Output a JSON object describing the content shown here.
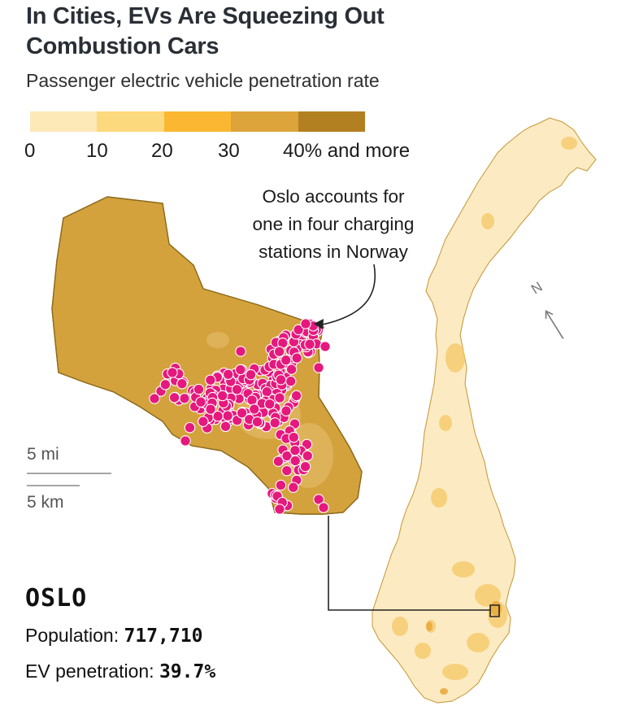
{
  "header": {
    "title": "In Cities, EVs Are Squeezing Out Combustion Cars",
    "subtitle": "Passenger electric vehicle penetration rate"
  },
  "legend": {
    "colors": [
      "#fde8b8",
      "#fdd97e",
      "#fbb731",
      "#dca43a",
      "#b38021"
    ],
    "labels": [
      "0",
      "10",
      "20",
      "30",
      "40% and more"
    ]
  },
  "annotation": {
    "line1": "Oslo accounts for",
    "line2": "one in four charging",
    "line3": "stations in Norway"
  },
  "scale": {
    "miles": "5 mi",
    "km": "5 km"
  },
  "compass": {
    "label": "N",
    "icon": "north-arrow-icon"
  },
  "city": {
    "name": "OSLO",
    "population_label": "Population:",
    "population_value": "717,710",
    "ev_label": "EV penetration:",
    "ev_value": "39.7%"
  },
  "colors": {
    "oslo_fill": "#d4a23c",
    "oslo_stroke": "#8e6a1c",
    "charger_dot": "#e5197d",
    "norway_base": "#fcebc2",
    "leader_line": "#222222"
  }
}
